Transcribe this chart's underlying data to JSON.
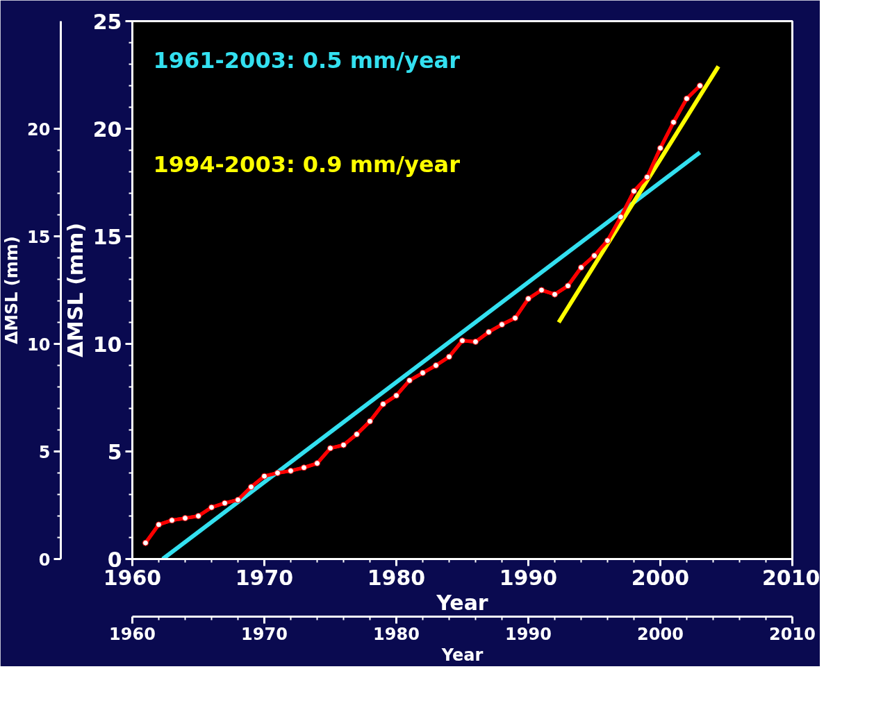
{
  "chart_data": {
    "type": "line",
    "xlabel": "Year",
    "ylabel": "ΔMSL (mm)",
    "x2label": "Year",
    "y2label": "ΔMSL (mm)",
    "xlim": [
      1960,
      2010
    ],
    "ylim": [
      0,
      25
    ],
    "xticks": [
      1960,
      1970,
      1980,
      1990,
      2000,
      2010
    ],
    "yticks": [
      0,
      5,
      10,
      15,
      20,
      25
    ],
    "x2lim": [
      1960,
      2010
    ],
    "y2lim": [
      0,
      25
    ],
    "x2ticks": [
      1960,
      1970,
      1980,
      1990,
      2000,
      2010
    ],
    "y2ticks": [
      0,
      5,
      10,
      15,
      20
    ],
    "grid": false,
    "line_style": "solid",
    "series": [
      {
        "color": "#ff0000",
        "marker": "circle",
        "x": [
          1961,
          1962,
          1963,
          1964,
          1965,
          1966,
          1967,
          1968,
          1969,
          1970,
          1971,
          1972,
          1973,
          1974,
          1975,
          1976,
          1977,
          1978,
          1979,
          1980,
          1981,
          1982,
          1983,
          1984,
          1985,
          1986,
          1987,
          1988,
          1989,
          1990,
          1991,
          1992,
          1993,
          1994,
          1995,
          1996,
          1997,
          1998,
          1999,
          2000,
          2001,
          2002,
          2003
        ],
        "values": [
          0.75,
          1.6,
          1.8,
          1.9,
          2.0,
          2.4,
          2.6,
          2.75,
          3.35,
          3.85,
          4.0,
          4.1,
          4.25,
          4.45,
          5.15,
          5.3,
          5.8,
          6.4,
          7.2,
          7.6,
          8.3,
          8.65,
          9.0,
          9.4,
          10.15,
          10.1,
          10.55,
          10.9,
          11.2,
          12.1,
          12.5,
          12.3,
          12.7,
          13.55,
          14.1,
          14.8,
          15.9,
          17.1,
          17.75,
          19.1,
          20.3,
          21.4,
          22.0
        ]
      },
      {
        "name": "1961-2003: 0.5 mm/year",
        "color": "#33e0f0",
        "marker": "none",
        "x": [
          1962.3,
          2003
        ],
        "values": [
          0,
          18.9
        ]
      },
      {
        "name": "1994-2003: 0.9 mm/year",
        "color": "#ffff00",
        "marker": "none",
        "x": [
          1992.3,
          2004.4
        ],
        "values": [
          11.0,
          22.9
        ]
      }
    ]
  }
}
